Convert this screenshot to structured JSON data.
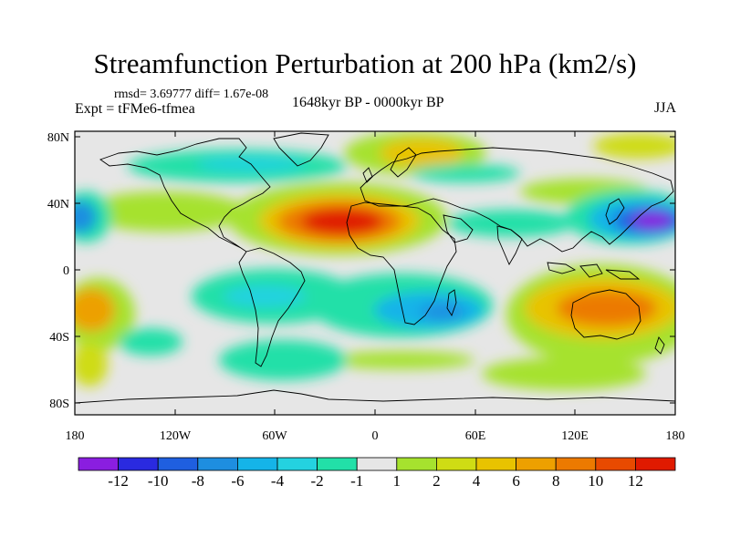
{
  "header": {
    "title": "Streamfunction Perturbation at 200 hPa (km2/s)",
    "stats": "rmsd= 3.69777 diff= 1.67e-08",
    "experiment": "Expt = tFMe6-tfmea",
    "period": "1648kyr BP - 0000kyr BP",
    "season": "JJA"
  },
  "axes": {
    "lat_labels": [
      "80N",
      "40N",
      "0",
      "40S",
      "80S"
    ],
    "lon_labels": [
      "180",
      "120W",
      "60W",
      "0",
      "60E",
      "120E",
      "180"
    ]
  },
  "colorbar": {
    "labels": [
      "-12",
      "-10",
      "-8",
      "-6",
      "-4",
      "-2",
      "-1",
      "1",
      "2",
      "4",
      "6",
      "8",
      "10",
      "12"
    ],
    "colors": [
      "#8a1ee0",
      "#2a2ae0",
      "#1f5fe0",
      "#1e8ee0",
      "#15b4e8",
      "#24d2e0",
      "#22e0a8",
      "#e6e6e6",
      "#a6e22e",
      "#cfdc14",
      "#e8c300",
      "#eda000",
      "#ec7a00",
      "#e84a00",
      "#e01a00"
    ]
  },
  "colors": {
    "ocean_land_bg": "#e6e6e6",
    "coastline": "#000000"
  }
}
